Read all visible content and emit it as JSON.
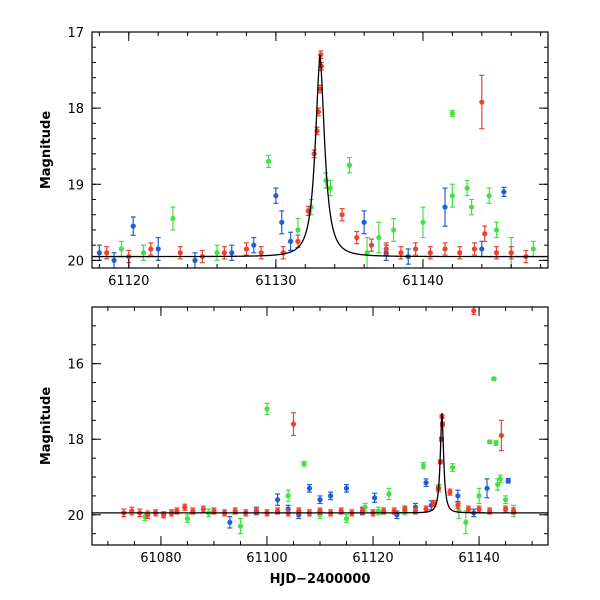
{
  "colors": {
    "blue": "#1f5fd6",
    "green": "#44e044",
    "red": "#f04030",
    "model": "#000000"
  },
  "chart_data": [
    {
      "type": "scatter",
      "name": "zoom-panel",
      "title": "",
      "xlabel": "",
      "ylabel": "Magnitude",
      "xlim": [
        61117.5,
        61148.5
      ],
      "ylim": [
        20.1,
        17.0
      ],
      "x_major_ticks": [
        61120,
        61130,
        61140
      ],
      "y_major_ticks": [
        17,
        18,
        19,
        20
      ],
      "x_tick_labels": [
        "61120",
        "61130",
        "61140"
      ],
      "y_tick_labels": [
        "17",
        "18",
        "19",
        "20"
      ],
      "model": {
        "peak_x": 61133.0,
        "peak_mag": 17.3,
        "baseline_mag": 19.95,
        "width_days": 0.45
      },
      "series": [
        {
          "name": "blue",
          "color_key": "blue",
          "points": [
            [
              61118.0,
              19.9,
              0.1
            ],
            [
              61119.0,
              20.0,
              0.1
            ],
            [
              61120.3,
              19.55,
              0.12
            ],
            [
              61122.0,
              19.85,
              0.15
            ],
            [
              61124.5,
              20.0,
              0.1
            ],
            [
              61127.0,
              19.9,
              0.1
            ],
            [
              61128.5,
              19.8,
              0.1
            ],
            [
              61130.0,
              19.15,
              0.1
            ],
            [
              61130.4,
              19.5,
              0.15
            ],
            [
              61131.0,
              19.75,
              0.12
            ],
            [
              61136.0,
              19.5,
              0.15
            ],
            [
              61137.5,
              19.9,
              0.1
            ],
            [
              61139.0,
              19.95,
              0.1
            ],
            [
              61141.5,
              19.3,
              0.25
            ],
            [
              61144.0,
              19.85,
              0.1
            ],
            [
              61145.5,
              19.1,
              0.06
            ]
          ]
        },
        {
          "name": "green",
          "color_key": "green",
          "points": [
            [
              61119.5,
              19.85,
              0.1
            ],
            [
              61121.0,
              19.9,
              0.1
            ],
            [
              61123.0,
              19.45,
              0.15
            ],
            [
              61126.0,
              19.9,
              0.1
            ],
            [
              61129.5,
              18.7,
              0.08
            ],
            [
              61131.5,
              19.6,
              0.15
            ],
            [
              61132.4,
              19.3,
              0.1
            ],
            [
              61133.4,
              18.95,
              0.1
            ],
            [
              61133.7,
              19.05,
              0.1
            ],
            [
              61135.0,
              18.75,
              0.1
            ],
            [
              61136.2,
              19.9,
              0.2
            ],
            [
              61137.0,
              19.7,
              0.2
            ],
            [
              61138.0,
              19.6,
              0.15
            ],
            [
              61140.0,
              19.5,
              0.2
            ],
            [
              61142.0,
              18.07,
              0.04
            ],
            [
              61142.0,
              19.15,
              0.15
            ],
            [
              61143.0,
              19.05,
              0.1
            ],
            [
              61143.3,
              19.3,
              0.1
            ],
            [
              61144.5,
              19.15,
              0.1
            ],
            [
              61145.0,
              19.6,
              0.1
            ],
            [
              61146.0,
              19.9,
              0.2
            ],
            [
              61147.5,
              19.85,
              0.1
            ]
          ]
        },
        {
          "name": "red",
          "color_key": "red",
          "points": [
            [
              61118.5,
              19.9,
              0.08
            ],
            [
              61120.0,
              19.95,
              0.08
            ],
            [
              61121.5,
              19.85,
              0.08
            ],
            [
              61123.5,
              19.9,
              0.08
            ],
            [
              61125.0,
              19.95,
              0.08
            ],
            [
              61126.5,
              19.9,
              0.08
            ],
            [
              61128.0,
              19.85,
              0.08
            ],
            [
              61129.0,
              19.9,
              0.08
            ],
            [
              61130.5,
              19.9,
              0.08
            ],
            [
              61131.5,
              19.75,
              0.08
            ],
            [
              61132.2,
              19.35,
              0.06
            ],
            [
              61132.6,
              18.6,
              0.05
            ],
            [
              61132.8,
              18.3,
              0.05
            ],
            [
              61132.9,
              18.05,
              0.05
            ],
            [
              61133.0,
              17.75,
              0.05
            ],
            [
              61133.05,
              17.3,
              0.05
            ],
            [
              61133.1,
              17.45,
              0.05
            ],
            [
              61134.5,
              19.4,
              0.08
            ],
            [
              61135.5,
              19.7,
              0.08
            ],
            [
              61136.5,
              19.8,
              0.08
            ],
            [
              61137.5,
              19.85,
              0.08
            ],
            [
              61138.5,
              19.9,
              0.08
            ],
            [
              61139.5,
              19.85,
              0.08
            ],
            [
              61140.5,
              19.9,
              0.08
            ],
            [
              61141.5,
              19.85,
              0.08
            ],
            [
              61142.5,
              19.9,
              0.08
            ],
            [
              61143.5,
              19.85,
              0.08
            ],
            [
              61144.0,
              17.92,
              0.35
            ],
            [
              61144.2,
              19.65,
              0.1
            ],
            [
              61145.0,
              19.9,
              0.08
            ],
            [
              61146.0,
              19.9,
              0.08
            ],
            [
              61147.0,
              19.95,
              0.08
            ]
          ]
        }
      ]
    },
    {
      "type": "scatter",
      "name": "full-panel",
      "title": "",
      "xlabel": "HJD−2400000",
      "ylabel": "Magnitude",
      "xlim": [
        61067.0,
        61153.0
      ],
      "ylim": [
        20.8,
        14.5
      ],
      "x_major_ticks": [
        61080,
        61100,
        61120,
        61140
      ],
      "y_major_ticks": [
        16,
        18,
        20
      ],
      "x_tick_labels": [
        "61080",
        "61100",
        "61120",
        "61140"
      ],
      "y_tick_labels": [
        "16",
        "18",
        "20"
      ],
      "model": {
        "peak_x": 61133.0,
        "peak_mag": 17.3,
        "baseline_mag": 19.95,
        "width_days": 0.45
      },
      "series": [
        {
          "name": "blue",
          "color_key": "blue",
          "points": [
            [
              61093.0,
              20.2,
              0.15
            ],
            [
              61098.0,
              19.9,
              0.1
            ],
            [
              61102.0,
              19.6,
              0.15
            ],
            [
              61104.0,
              19.85,
              0.1
            ],
            [
              61106.0,
              20.0,
              0.1
            ],
            [
              61108.0,
              19.3,
              0.1
            ],
            [
              61110.0,
              19.6,
              0.1
            ],
            [
              61112.0,
              19.5,
              0.1
            ],
            [
              61115.0,
              19.3,
              0.1
            ],
            [
              61118.0,
              19.9,
              0.1
            ],
            [
              61120.3,
              19.55,
              0.12
            ],
            [
              61124.5,
              20.0,
              0.1
            ],
            [
              61128.0,
              19.8,
              0.1
            ],
            [
              61130.0,
              19.15,
              0.1
            ],
            [
              61131.0,
              19.75,
              0.12
            ],
            [
              61136.0,
              19.5,
              0.15
            ],
            [
              61139.0,
              19.95,
              0.1
            ],
            [
              61141.5,
              19.3,
              0.25
            ],
            [
              61145.5,
              19.1,
              0.06
            ]
          ]
        },
        {
          "name": "green",
          "color_key": "green",
          "points": [
            [
              61077.0,
              20.05,
              0.1
            ],
            [
              61085.0,
              20.1,
              0.1
            ],
            [
              61089.0,
              19.95,
              0.1
            ],
            [
              61095.0,
              20.3,
              0.2
            ],
            [
              61100.0,
              17.2,
              0.15
            ],
            [
              61104.0,
              19.5,
              0.15
            ],
            [
              61107.0,
              18.65,
              0.06
            ],
            [
              61110.0,
              20.0,
              0.1
            ],
            [
              61115.0,
              20.1,
              0.1
            ],
            [
              61118.5,
              19.8,
              0.1
            ],
            [
              61121.0,
              19.9,
              0.1
            ],
            [
              61123.0,
              19.45,
              0.15
            ],
            [
              61126.0,
              19.9,
              0.1
            ],
            [
              61129.5,
              18.7,
              0.08
            ],
            [
              61132.4,
              19.3,
              0.1
            ],
            [
              61135.0,
              18.75,
              0.1
            ],
            [
              61136.2,
              19.9,
              0.2
            ],
            [
              61137.5,
              20.2,
              0.3
            ],
            [
              61140.0,
              19.5,
              0.2
            ],
            [
              61142.0,
              18.07,
              0.04
            ],
            [
              61142.8,
              16.4,
              0.04
            ],
            [
              61143.2,
              18.1,
              0.06
            ],
            [
              61143.5,
              19.2,
              0.15
            ],
            [
              61144.0,
              19.05,
              0.1
            ],
            [
              61145.0,
              19.6,
              0.1
            ],
            [
              61146.5,
              19.9,
              0.15
            ]
          ]
        },
        {
          "name": "red",
          "color_key": "red",
          "points": [
            [
              61073.0,
              19.95,
              0.1
            ],
            [
              61074.5,
              19.9,
              0.1
            ],
            [
              61076.0,
              19.95,
              0.1
            ],
            [
              61077.5,
              20.0,
              0.1
            ],
            [
              61079.0,
              19.95,
              0.08
            ],
            [
              61080.5,
              20.0,
              0.08
            ],
            [
              61082.0,
              19.95,
              0.08
            ],
            [
              61083.0,
              19.9,
              0.08
            ],
            [
              61084.5,
              19.8,
              0.08
            ],
            [
              61086.0,
              19.9,
              0.08
            ],
            [
              61088.0,
              19.85,
              0.08
            ],
            [
              61090.0,
              19.9,
              0.08
            ],
            [
              61092.0,
              19.95,
              0.08
            ],
            [
              61094.0,
              19.9,
              0.08
            ],
            [
              61096.0,
              19.95,
              0.08
            ],
            [
              61098.0,
              19.9,
              0.08
            ],
            [
              61100.0,
              19.95,
              0.08
            ],
            [
              61102.0,
              19.9,
              0.08
            ],
            [
              61104.0,
              19.95,
              0.08
            ],
            [
              61105.0,
              17.6,
              0.3
            ],
            [
              61106.0,
              19.9,
              0.08
            ],
            [
              61108.0,
              19.95,
              0.08
            ],
            [
              61110.0,
              19.9,
              0.08
            ],
            [
              61112.0,
              19.95,
              0.08
            ],
            [
              61114.0,
              19.9,
              0.08
            ],
            [
              61116.0,
              19.95,
              0.08
            ],
            [
              61118.0,
              19.9,
              0.08
            ],
            [
              61120.0,
              19.95,
              0.08
            ],
            [
              61122.0,
              19.9,
              0.08
            ],
            [
              61124.0,
              19.9,
              0.08
            ],
            [
              61126.0,
              19.85,
              0.08
            ],
            [
              61128.0,
              19.9,
              0.08
            ],
            [
              61130.0,
              19.85,
              0.08
            ],
            [
              61131.5,
              19.7,
              0.08
            ],
            [
              61132.3,
              19.3,
              0.06
            ],
            [
              61132.7,
              18.6,
              0.05
            ],
            [
              61132.9,
              18.0,
              0.05
            ],
            [
              61133.0,
              17.4,
              0.05
            ],
            [
              61133.1,
              17.6,
              0.05
            ],
            [
              61134.5,
              19.4,
              0.08
            ],
            [
              61136.0,
              19.75,
              0.08
            ],
            [
              61138.0,
              19.85,
              0.08
            ],
            [
              61139.0,
              14.6,
              0.1
            ],
            [
              61140.0,
              19.85,
              0.08
            ],
            [
              61142.0,
              19.9,
              0.08
            ],
            [
              61144.2,
              17.9,
              0.4
            ],
            [
              61145.0,
              19.85,
              0.08
            ],
            [
              61146.5,
              19.9,
              0.08
            ]
          ]
        }
      ]
    }
  ]
}
